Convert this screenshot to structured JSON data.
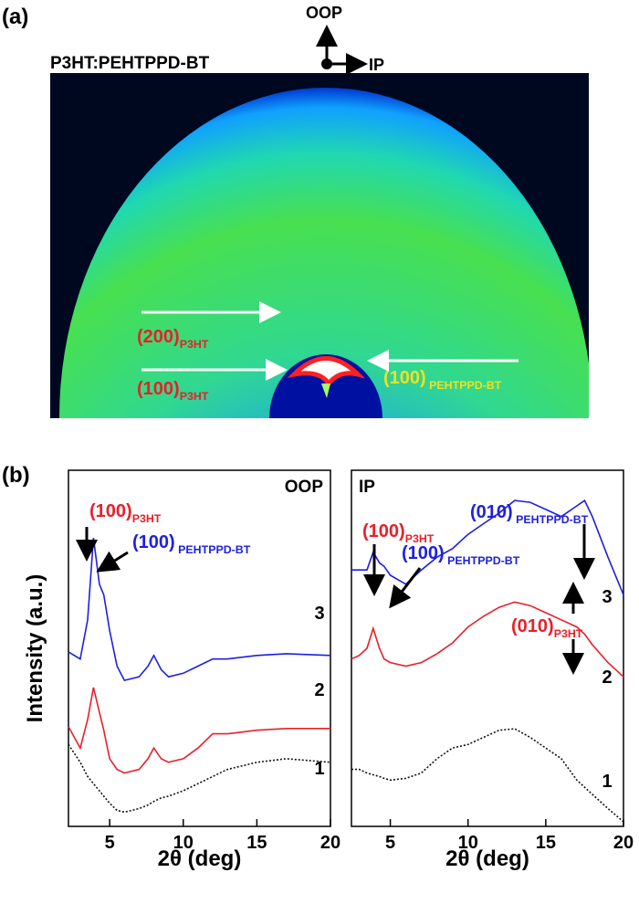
{
  "panel_a": {
    "label": "(a)",
    "sample": "P3HT:PEHTPPD-BT",
    "axes": {
      "oop": "OOP",
      "ip": "IP"
    },
    "peaks": [
      {
        "text": "(200)",
        "sub": "P3HT",
        "color": "#e8202a"
      },
      {
        "text": "(100)",
        "sub": "P3HT",
        "color": "#e8202a"
      },
      {
        "text": "(100)",
        "sub": " PEHTPPD-BT",
        "color": "#f0e020"
      }
    ]
  },
  "panel_b_label": "(b)",
  "y_axis_label": "Intensity (a.u.)",
  "chart_data": [
    {
      "type": "line",
      "title": "OOP",
      "x_label": "2θ (deg)",
      "x": [
        2.2,
        3,
        3.5,
        3.9,
        4.3,
        4.6,
        5,
        5.5,
        6,
        7,
        7.6,
        8,
        8.5,
        9,
        10,
        11,
        12,
        13,
        15,
        17,
        20
      ],
      "xlim": [
        2.2,
        20
      ],
      "xticks": [
        5,
        10,
        15,
        20
      ],
      "ylim": [
        0,
        100
      ],
      "series": [
        {
          "name": "3",
          "color": "#1f1fe0",
          "values": [
            49,
            47,
            58,
            81,
            68,
            65,
            55,
            45,
            41,
            42,
            45,
            48,
            44,
            42,
            43,
            45,
            47,
            47,
            48,
            48.5,
            48
          ]
        },
        {
          "name": "2",
          "color": "#e8202a",
          "values": [
            28,
            22,
            30,
            39,
            32,
            27,
            19,
            16,
            15,
            16,
            19,
            22,
            19,
            18,
            19,
            22,
            26,
            26,
            27,
            27.5,
            27.5
          ]
        },
        {
          "name": "1",
          "color": "#111111",
          "dashed": true,
          "values": [
            23,
            18,
            14,
            12,
            10,
            8.5,
            6.5,
            4.5,
            4,
            5,
            6,
            7,
            8,
            8.5,
            10,
            12,
            14,
            16,
            18,
            19,
            18
          ]
        }
      ],
      "annotations": [
        {
          "text": "(100)",
          "sub": "P3HT",
          "color": "#e8202a"
        },
        {
          "text": "(100)",
          "sub": " PEHTPPD-BT",
          "color": "#1f1fe0"
        }
      ]
    },
    {
      "type": "line",
      "title": "IP",
      "x_label": "2θ (deg)",
      "x": [
        2.5,
        3,
        3.5,
        3.9,
        4.3,
        4.6,
        5,
        6,
        7,
        8,
        9,
        10,
        11,
        12,
        13,
        14,
        15,
        16,
        17,
        17.5,
        18,
        19,
        20
      ],
      "xlim": [
        2.5,
        20
      ],
      "xticks": [
        5,
        10,
        15,
        20
      ],
      "ylim": [
        0,
        100
      ],
      "series": [
        {
          "name": "3",
          "color": "#1f1fe0",
          "values": [
            72,
            72,
            72,
            77,
            74,
            73,
            70.5,
            68,
            72,
            75.6,
            78,
            82,
            85,
            88,
            91.5,
            91,
            89,
            87,
            90,
            91.5,
            87,
            75.6,
            65
          ]
        },
        {
          "name": "2",
          "color": "#e8202a",
          "values": [
            47,
            48,
            50,
            55.6,
            50,
            47,
            46,
            45,
            46,
            48.5,
            51.5,
            56,
            59,
            61.5,
            63,
            62,
            60,
            58,
            56,
            54,
            51,
            46,
            42
          ]
        },
        {
          "name": "1",
          "color": "#111111",
          "dashed": true,
          "values": [
            16,
            16,
            15,
            14.5,
            14,
            13.5,
            13,
            13.5,
            15,
            19,
            22,
            23,
            25,
            27,
            27.4,
            25,
            22,
            19,
            13,
            11,
            9,
            5,
            1.3
          ]
        }
      ],
      "annotations": [
        {
          "text": "(100)",
          "sub": "P3HT",
          "color": "#e8202a"
        },
        {
          "text": "(100)",
          "sub": " PEHTPPD-BT",
          "color": "#1f1fe0"
        },
        {
          "text": "(010)",
          "sub": " PEHTPPD-BT",
          "color": "#1f1fe0"
        },
        {
          "text": "(010)",
          "sub": "P3HT",
          "color": "#e8202a"
        }
      ]
    }
  ]
}
